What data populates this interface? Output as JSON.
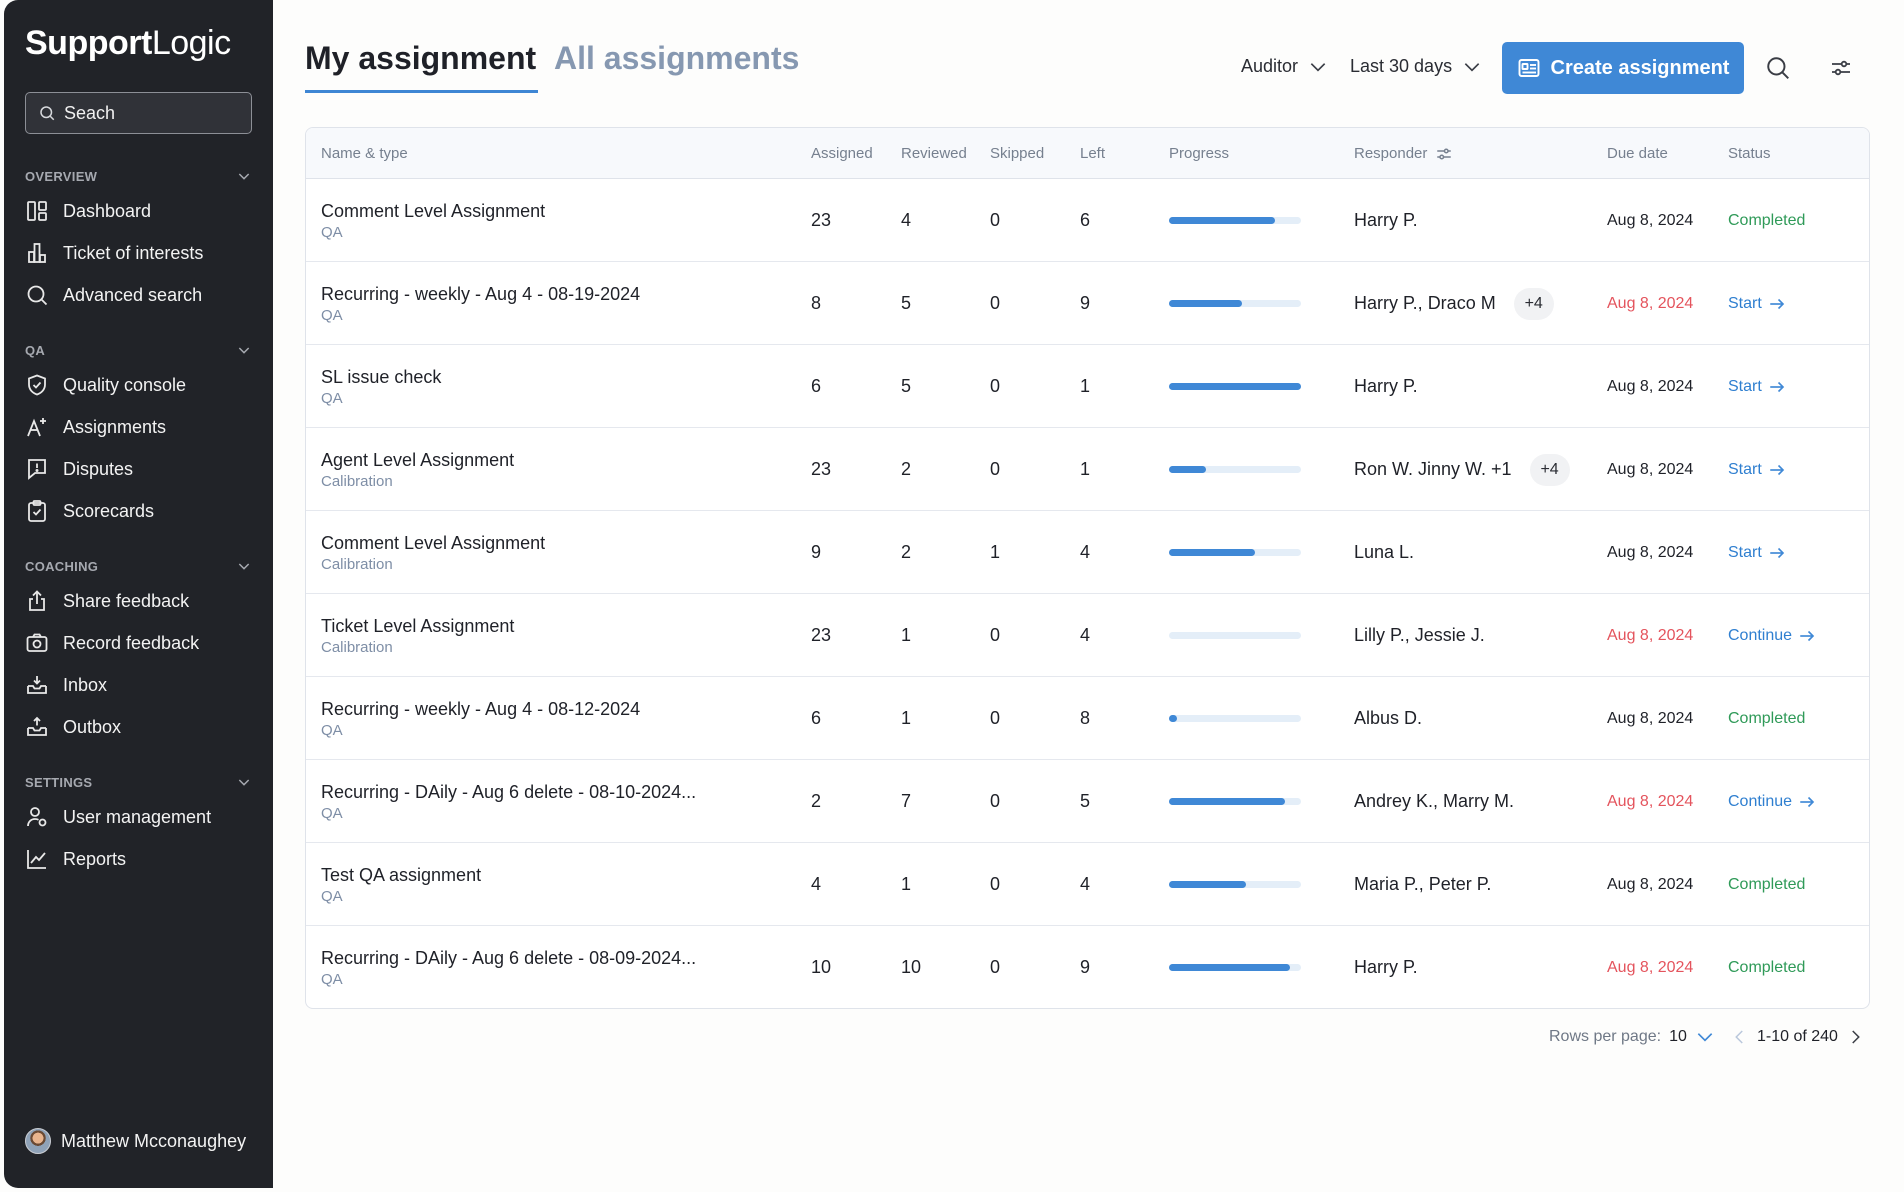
{
  "brand": {
    "bold": "Support",
    "light": "Logic"
  },
  "search": {
    "placeholder": "Seach"
  },
  "sidebar": {
    "sections": [
      {
        "title": "OVERVIEW",
        "items": [
          {
            "label": "Dashboard",
            "icon": "dashboard-icon"
          },
          {
            "label": "Ticket of interests",
            "icon": "bar-chart-icon"
          },
          {
            "label": "Advanced search",
            "icon": "search-icon"
          }
        ]
      },
      {
        "title": "QA",
        "items": [
          {
            "label": "Quality console",
            "icon": "shield-check-icon"
          },
          {
            "label": "Assignments",
            "icon": "assignment-icon"
          },
          {
            "label": "Disputes",
            "icon": "dispute-icon"
          },
          {
            "label": "Scorecards",
            "icon": "clipboard-check-icon"
          }
        ]
      },
      {
        "title": "COACHING",
        "items": [
          {
            "label": "Share feedback",
            "icon": "share-icon"
          },
          {
            "label": "Record feedback",
            "icon": "camera-icon"
          },
          {
            "label": "Inbox",
            "icon": "inbox-icon"
          },
          {
            "label": "Outbox",
            "icon": "outbox-icon"
          }
        ]
      },
      {
        "title": "SETTINGS",
        "items": [
          {
            "label": "User management",
            "icon": "user-settings-icon"
          },
          {
            "label": "Reports",
            "icon": "line-chart-icon"
          }
        ]
      }
    ],
    "user": {
      "name": "Matthew Mcconaughey"
    }
  },
  "tabs": {
    "mine": "My assignment",
    "all": "All assignments"
  },
  "filters": {
    "role": "Auditor",
    "range": "Last 30 days"
  },
  "create_button": {
    "label": "Create assignment"
  },
  "colors": {
    "accent": "#3f88d6",
    "completed": "#2f9a58",
    "overdue": "#e4545d",
    "sidebar": "#212328"
  },
  "table": {
    "headers": {
      "name": "Name & type",
      "assigned": "Assigned",
      "reviewed": "Reviewed",
      "skipped": "Skipped",
      "left": "Left",
      "progress": "Progress",
      "responder": "Responder",
      "due": "Due date",
      "status": "Status"
    },
    "rows": [
      {
        "name": "Comment Level Assignment",
        "type": "QA",
        "assigned": "23",
        "reviewed": "4",
        "skipped": "0",
        "left": "6",
        "progress": 0.8,
        "responder": "Harry P.",
        "extra": "",
        "due": "Aug 8, 2024",
        "overdue": false,
        "status": "Completed",
        "status_kind": "completed"
      },
      {
        "name": "Recurring - weekly - Aug 4 - 08-19-2024",
        "type": "QA",
        "assigned": "8",
        "reviewed": "5",
        "skipped": "0",
        "left": "9",
        "progress": 0.55,
        "responder": "Harry P., Draco M",
        "extra": "+4",
        "due": "Aug 8, 2024",
        "overdue": true,
        "status": "Start",
        "status_kind": "action"
      },
      {
        "name": "SL issue check",
        "type": "QA",
        "assigned": "6",
        "reviewed": "5",
        "skipped": "0",
        "left": "1",
        "progress": 1.0,
        "responder": "Harry P.",
        "extra": "",
        "due": "Aug 8, 2024",
        "overdue": false,
        "status": "Start",
        "status_kind": "action"
      },
      {
        "name": "Agent Level Assignment",
        "type": "Calibration",
        "assigned": "23",
        "reviewed": "2",
        "skipped": "0",
        "left": "1",
        "progress": 0.28,
        "responder": "Ron W. Jinny W. +1",
        "extra": "+4",
        "due": "Aug 8, 2024",
        "overdue": false,
        "status": "Start",
        "status_kind": "action"
      },
      {
        "name": "Comment Level Assignment",
        "type": "Calibration",
        "assigned": "9",
        "reviewed": "2",
        "skipped": "1",
        "left": "4",
        "progress": 0.65,
        "responder": "Luna L.",
        "extra": "",
        "due": "Aug 8, 2024",
        "overdue": false,
        "status": "Start",
        "status_kind": "action"
      },
      {
        "name": "Ticket Level Assignment",
        "type": "Calibration",
        "assigned": "23",
        "reviewed": "1",
        "skipped": "0",
        "left": "4",
        "progress": 0.0,
        "responder": "Lilly P., Jessie J.",
        "extra": "",
        "due": "Aug 8, 2024",
        "overdue": true,
        "status": "Continue",
        "status_kind": "action"
      },
      {
        "name": "Recurring - weekly - Aug 4 - 08-12-2024",
        "type": "QA",
        "assigned": "6",
        "reviewed": "1",
        "skipped": "0",
        "left": "8",
        "progress": 0.06,
        "responder": "Albus D.",
        "extra": "",
        "due": "Aug 8, 2024",
        "overdue": false,
        "status": "Completed",
        "status_kind": "completed"
      },
      {
        "name": "Recurring - DAily - Aug 6 delete - 08-10-2024...",
        "type": "QA",
        "assigned": "2",
        "reviewed": "7",
        "skipped": "0",
        "left": "5",
        "progress": 0.88,
        "responder": "Andrey K., Marry M.",
        "extra": "",
        "due": "Aug 8, 2024",
        "overdue": true,
        "status": "Continue",
        "status_kind": "action"
      },
      {
        "name": "Test QA assignment",
        "type": "QA",
        "assigned": "4",
        "reviewed": "1",
        "skipped": "0",
        "left": "4",
        "progress": 0.58,
        "responder": "Maria P., Peter P.",
        "extra": "",
        "due": "Aug 8, 2024",
        "overdue": false,
        "status": "Completed",
        "status_kind": "completed"
      },
      {
        "name": "Recurring - DAily - Aug 6 delete - 08-09-2024...",
        "type": "QA",
        "assigned": "10",
        "reviewed": "10",
        "skipped": "0",
        "left": "9",
        "progress": 0.92,
        "responder": "Harry P.",
        "extra": "",
        "due": "Aug 8, 2024",
        "overdue": true,
        "status": "Completed",
        "status_kind": "completed"
      }
    ]
  },
  "pagination": {
    "rows_label": "Rows per page:",
    "rows_value": "10",
    "range": "1-10 of 240"
  }
}
